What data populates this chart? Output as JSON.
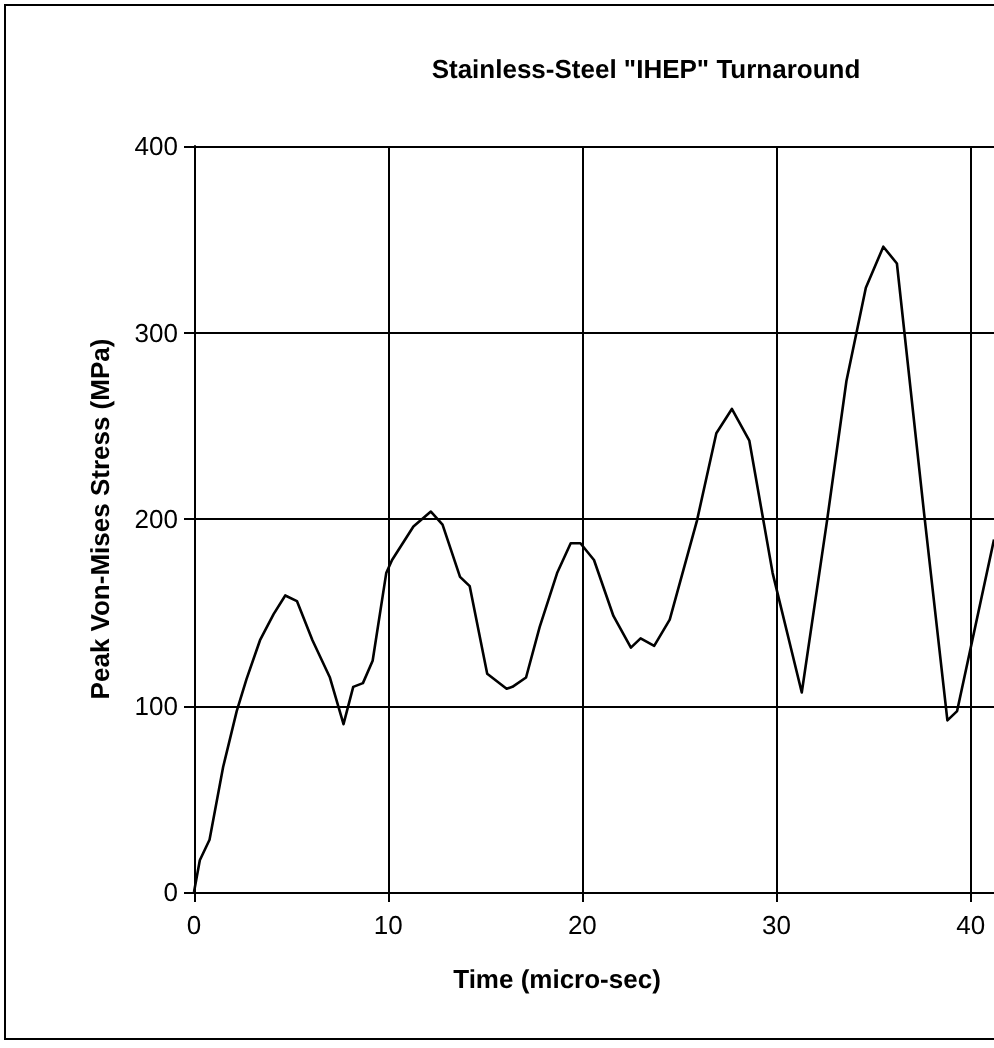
{
  "chart_data": {
    "type": "line",
    "title": "Stainless-Steel \"IHEP\" Turnaround",
    "xlabel": "Time (micro-sec)",
    "ylabel": "Peak Von-Mises Stress (MPa)",
    "xlim": [
      0,
      41.2
    ],
    "xticks": [
      0,
      10,
      20,
      30,
      40
    ],
    "ylim": [
      0,
      400
    ],
    "yticks": [
      0,
      100,
      200,
      300,
      400
    ],
    "grid": true,
    "marker": "none",
    "line_style": "solid",
    "series": [
      {
        "color": "#000000",
        "x": [
          0,
          0.3,
          0.8,
          1.5,
          2.2,
          2.7,
          3.4,
          4.1,
          4.7,
          5.3,
          6.1,
          7.0,
          7.7,
          8.2,
          8.7,
          9.2,
          9.9,
          10.2,
          11.3,
          12.2,
          12.8,
          13.7,
          14.2,
          15.1,
          16.1,
          16.4,
          17.1,
          17.8,
          18.7,
          19.4,
          19.9,
          20.6,
          21.6,
          22.5,
          23.0,
          23.7,
          24.5,
          25.9,
          26.9,
          27.7,
          28.6,
          29.8,
          31.3,
          32.6,
          33.6,
          34.6,
          35.5,
          36.2,
          37.6,
          38.8,
          39.3,
          41.2
        ],
        "values": [
          0,
          17,
          28,
          67,
          97,
          114,
          135,
          149,
          159,
          156,
          135,
          115,
          90,
          110,
          112,
          124,
          171,
          178,
          196,
          204,
          197,
          169,
          164,
          117,
          109,
          110,
          115,
          142,
          171,
          187,
          187,
          178,
          148,
          131,
          136,
          132,
          146,
          199,
          246,
          259,
          242,
          171,
          107,
          199,
          274,
          324,
          346,
          337,
          203,
          92,
          97,
          189
        ]
      }
    ]
  }
}
